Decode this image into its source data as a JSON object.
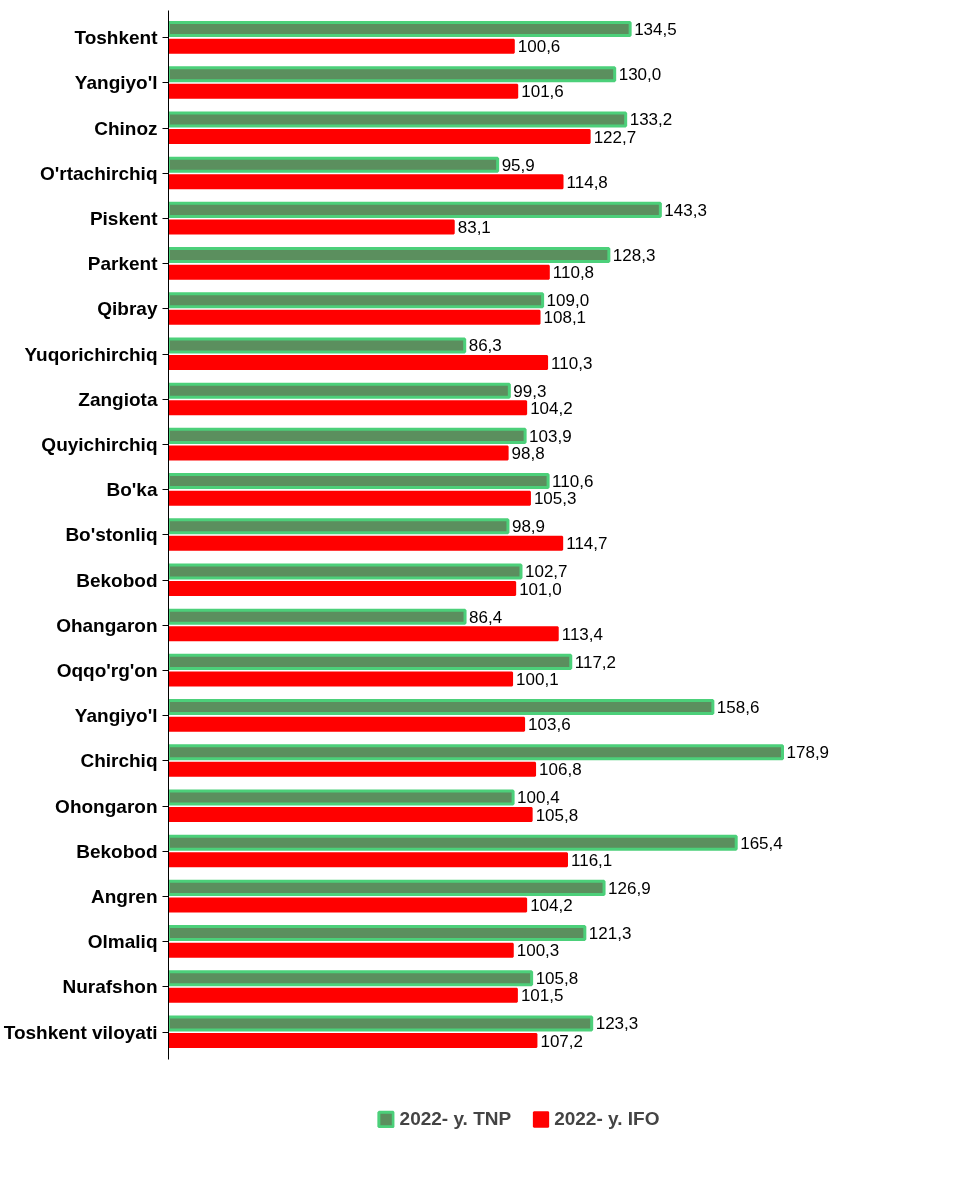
{
  "chart_data": {
    "type": "bar",
    "orientation": "horizontal",
    "legend": "bottom",
    "grid": false,
    "categories": [
      "Toshkent",
      "Yangiyo'l",
      "Chinoz",
      "O'rtachirchiq",
      "Piskent",
      "Parkent",
      "Qibray",
      "Yuqorichirchiq",
      "Zangiota",
      "Quyichirchiq",
      "Bo'ka",
      "Bo'stonliq",
      "Bekobod",
      "Ohangaron",
      "Oqqo'rg'on",
      "Yangiyo'l",
      "Chirchiq",
      "Ohongaron",
      "Bekobod",
      "Angren",
      "Olmaliq",
      "Nurafshon",
      "Toshkent viloyati"
    ],
    "series": [
      {
        "name": "2022- y. TNP",
        "color": "#5b8f5e",
        "values": [
          134.5,
          130.0,
          133.2,
          95.9,
          143.3,
          128.3,
          109.0,
          86.3,
          99.3,
          103.9,
          110.6,
          98.9,
          102.7,
          86.4,
          117.2,
          158.6,
          178.9,
          100.4,
          165.4,
          126.9,
          121.3,
          105.8,
          123.3
        ],
        "value_labels": [
          "134,5",
          "130,0",
          "133,2",
          "95,9",
          "143,3",
          "128,3",
          "109,0",
          "86,3",
          "99,3",
          "103,9",
          "110,6",
          "98,9",
          "102,7",
          "86,4",
          "117,2",
          "158,6",
          "178,9",
          "100,4",
          "165,4",
          "126,9",
          "121,3",
          "105,8",
          "123,3"
        ]
      },
      {
        "name": "2022- y. IFO",
        "color": "#ff0000",
        "values": [
          100.6,
          101.6,
          122.7,
          114.8,
          83.1,
          110.8,
          108.1,
          110.3,
          104.2,
          98.8,
          105.3,
          114.7,
          101.0,
          113.4,
          100.1,
          103.6,
          106.8,
          105.8,
          116.1,
          104.2,
          100.3,
          101.5,
          107.2
        ],
        "value_labels": [
          "100,6",
          "101,6",
          "122,7",
          "114,8",
          "83,1",
          "110,8",
          "108,1",
          "110,3",
          "104,2",
          "98,8",
          "105,3",
          "114,7",
          "101,0",
          "113,4",
          "100,1",
          "103,6",
          "106,8",
          "105,8",
          "116,1",
          "104,2",
          "100,3",
          "101,5",
          "107,2"
        ]
      }
    ]
  }
}
